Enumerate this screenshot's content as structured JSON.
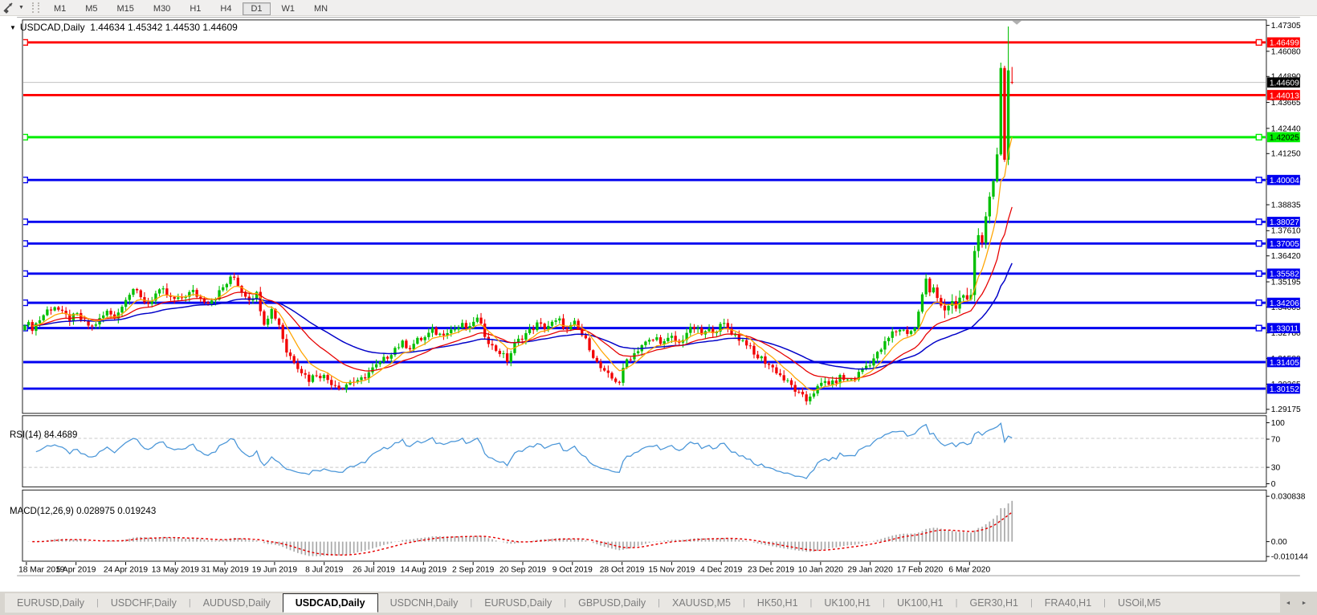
{
  "toolbar": {
    "caret": "▼",
    "timeframes": [
      "M1",
      "M5",
      "M15",
      "M30",
      "H1",
      "H4",
      "D1",
      "W1",
      "MN"
    ],
    "active_timeframe": "D1"
  },
  "chart": {
    "title": {
      "arrow": "▼",
      "symbol": "USDCAD,Daily",
      "ohlc": "1.44634 1.45342 1.44530 1.44609"
    },
    "rsi": {
      "name": "RSI(14)",
      "value": "84.4689"
    },
    "macd": {
      "name": "MACD(12,26,9)",
      "values": "0.028975 0.019243"
    }
  },
  "chart_data": {
    "type": "candlestick",
    "symbol": "USDCAD",
    "timeframe": "Daily",
    "last_candle_ohlc": {
      "open": 1.44634,
      "high": 1.45342,
      "low": 1.4453,
      "close": 1.44609
    },
    "current_price": "1.44609",
    "y_axis_ticks": [
      "1.47305",
      "1.46080",
      "1.44890",
      "1.43665",
      "1.42440",
      "1.41250",
      "1.40040",
      "1.38835",
      "1.37610",
      "1.36420",
      "1.35195",
      "1.34005",
      "1.32780",
      "1.31580",
      "1.30365",
      "1.29175"
    ],
    "x_axis_dates": [
      "18 Mar 2019",
      "5 Apr 2019",
      "24 Apr 2019",
      "13 May 2019",
      "31 May 2019",
      "19 Jun 2019",
      "8 Jul 2019",
      "26 Jul 2019",
      "14 Aug 2019",
      "2 Sep 2019",
      "20 Sep 2019",
      "9 Oct 2019",
      "28 Oct 2019",
      "15 Nov 2019",
      "4 Dec 2019",
      "23 Dec 2019",
      "10 Jan 2020",
      "29 Jan 2020",
      "17 Feb 2020",
      "6 Mar 2020"
    ],
    "hlines": [
      {
        "price": 1.46499,
        "label": "1.46499",
        "color": "red",
        "selected": true
      },
      {
        "price": 1.44013,
        "label": "1.44013",
        "color": "red",
        "selected": false
      },
      {
        "price": 1.42025,
        "label": "1.42025",
        "color": "green",
        "selected": true
      },
      {
        "price": 1.40004,
        "label": "1.40004",
        "color": "blue",
        "selected": true
      },
      {
        "price": 1.38027,
        "label": "1.38027",
        "color": "blue",
        "selected": true
      },
      {
        "price": 1.37005,
        "label": "1.37005",
        "color": "blue",
        "selected": true
      },
      {
        "price": 1.35582,
        "label": "1.35582",
        "color": "blue",
        "selected": true
      },
      {
        "price": 1.34206,
        "label": "1.34206",
        "color": "blue",
        "selected": true
      },
      {
        "price": 1.33011,
        "label": "1.33011",
        "color": "blue",
        "selected": true
      },
      {
        "price": 1.31405,
        "label": "1.31405",
        "color": "blue",
        "selected": false
      },
      {
        "price": 1.30152,
        "label": "1.30152",
        "color": "blue",
        "selected": false
      }
    ],
    "close_path_anchors": [
      [
        0,
        1.333
      ],
      [
        2,
        1.3302
      ],
      [
        4,
        1.3342
      ],
      [
        6,
        1.3385
      ],
      [
        8,
        1.3405
      ],
      [
        10,
        1.3368
      ],
      [
        12,
        1.3345
      ],
      [
        14,
        1.3362
      ],
      [
        16,
        1.3322
      ],
      [
        18,
        1.3308
      ],
      [
        20,
        1.334
      ],
      [
        22,
        1.3378
      ],
      [
        24,
        1.3358
      ],
      [
        26,
        1.3402
      ],
      [
        27,
        1.345
      ],
      [
        29,
        1.3488
      ],
      [
        31,
        1.344
      ],
      [
        33,
        1.3418
      ],
      [
        35,
        1.3462
      ],
      [
        37,
        1.3475
      ],
      [
        39,
        1.344
      ],
      [
        41,
        1.3432
      ],
      [
        43,
        1.3458
      ],
      [
        45,
        1.3472
      ],
      [
        47,
        1.344
      ],
      [
        49,
        1.3428
      ],
      [
        51,
        1.3448
      ],
      [
        53,
        1.3492
      ],
      [
        55,
        1.3532
      ],
      [
        56,
        1.354
      ],
      [
        58,
        1.3478
      ],
      [
        60,
        1.3442
      ],
      [
        62,
        1.3462
      ],
      [
        64,
        1.333
      ],
      [
        66,
        1.3388
      ],
      [
        68,
        1.332
      ],
      [
        70,
        1.319
      ],
      [
        72,
        1.3148
      ],
      [
        74,
        1.3098
      ],
      [
        76,
        1.3058
      ],
      [
        78,
        1.3086
      ],
      [
        80,
        1.3072
      ],
      [
        82,
        1.3045
      ],
      [
        84,
        1.3028
      ],
      [
        85,
        1.3018
      ],
      [
        87,
        1.3052
      ],
      [
        89,
        1.3042
      ],
      [
        91,
        1.3075
      ],
      [
        93,
        1.3108
      ],
      [
        95,
        1.3135
      ],
      [
        97,
        1.3168
      ],
      [
        99,
        1.3208
      ],
      [
        101,
        1.3228
      ],
      [
        103,
        1.3212
      ],
      [
        105,
        1.3242
      ],
      [
        107,
        1.3256
      ],
      [
        109,
        1.3288
      ],
      [
        111,
        1.327
      ],
      [
        113,
        1.3292
      ],
      [
        115,
        1.3296
      ],
      [
        117,
        1.3312
      ],
      [
        119,
        1.3295
      ],
      [
        120,
        1.3338
      ],
      [
        121,
        1.3342
      ],
      [
        123,
        1.3272
      ],
      [
        125,
        1.3212
      ],
      [
        127,
        1.3188
      ],
      [
        129,
        1.3148
      ],
      [
        131,
        1.3222
      ],
      [
        133,
        1.3262
      ],
      [
        135,
        1.3288
      ],
      [
        137,
        1.3318
      ],
      [
        139,
        1.3305
      ],
      [
        141,
        1.3322
      ],
      [
        143,
        1.3335
      ],
      [
        145,
        1.3288
      ],
      [
        147,
        1.3322
      ],
      [
        149,
        1.3268
      ],
      [
        151,
        1.3212
      ],
      [
        153,
        1.3135
      ],
      [
        155,
        1.3088
      ],
      [
        157,
        1.3062
      ],
      [
        159,
        1.3048
      ],
      [
        161,
        1.3152
      ],
      [
        163,
        1.3182
      ],
      [
        165,
        1.3222
      ],
      [
        167,
        1.3238
      ],
      [
        169,
        1.3252
      ],
      [
        171,
        1.3232
      ],
      [
        173,
        1.3255
      ],
      [
        175,
        1.3228
      ],
      [
        177,
        1.3282
      ],
      [
        179,
        1.3302
      ],
      [
        181,
        1.3272
      ],
      [
        183,
        1.3288
      ],
      [
        185,
        1.3298
      ],
      [
        187,
        1.3318
      ],
      [
        189,
        1.3282
      ],
      [
        191,
        1.3252
      ],
      [
        193,
        1.3232
      ],
      [
        195,
        1.3172
      ],
      [
        197,
        1.3158
      ],
      [
        199,
        1.3128
      ],
      [
        201,
        1.3098
      ],
      [
        203,
        1.3058
      ],
      [
        205,
        1.3028
      ],
      [
        207,
        1.2988
      ],
      [
        209,
        1.2958
      ],
      [
        210,
        1.2985
      ],
      [
        212,
        1.3018
      ],
      [
        214,
        1.3048
      ],
      [
        216,
        1.3038
      ],
      [
        218,
        1.3068
      ],
      [
        220,
        1.3055
      ],
      [
        222,
        1.3065
      ],
      [
        224,
        1.3108
      ],
      [
        226,
        1.3138
      ],
      [
        228,
        1.3178
      ],
      [
        230,
        1.3228
      ],
      [
        232,
        1.3278
      ],
      [
        234,
        1.3298
      ],
      [
        236,
        1.3282
      ],
      [
        238,
        1.3298
      ],
      [
        239,
        1.3382
      ],
      [
        240,
        1.3455
      ],
      [
        241,
        1.3528
      ],
      [
        242,
        1.347
      ],
      [
        243,
        1.3505
      ],
      [
        244,
        1.3448
      ],
      [
        245,
        1.3412
      ],
      [
        246,
        1.3382
      ],
      [
        247,
        1.3402
      ],
      [
        248,
        1.3428
      ],
      [
        249,
        1.3392
      ],
      [
        250,
        1.3442
      ],
      [
        251,
        1.3458
      ],
      [
        252,
        1.3435
      ],
      [
        253,
        1.3462
      ],
      [
        254,
        1.366
      ],
      [
        255,
        1.3735
      ],
      [
        256,
        1.37
      ],
      [
        257,
        1.383
      ],
      [
        258,
        1.3925
      ],
      [
        259,
        1.3996
      ],
      [
        260,
        1.412
      ],
      [
        261,
        1.4534
      ],
      [
        262,
        1.4095
      ],
      [
        263,
        1.4513
      ],
      [
        264,
        1.44609
      ]
    ],
    "spike_high_override": {
      "day": 263,
      "high": 1.4725
    },
    "indicators": {
      "ma_fast": {
        "type": "EMA",
        "period": 8,
        "color_key": "ma_fast"
      },
      "ma_mid": {
        "type": "EMA",
        "period": 21,
        "color_key": "ma_mid"
      },
      "ma_slow": {
        "type": "EMA",
        "period": 45,
        "color_key": "ma_slow"
      },
      "rsi": {
        "period": 14,
        "current": 84.4689,
        "levels": [
          "100",
          "70",
          "30",
          "0"
        ],
        "level_lines": [
          70,
          30
        ]
      },
      "macd": {
        "fast": 12,
        "slow": 26,
        "signal": 9,
        "current_macd": 0.028975,
        "current_signal": 0.019243,
        "axis_labels": [
          "0.030838",
          "0.00",
          "-0.010144"
        ]
      }
    }
  },
  "tabs": {
    "separator": "|",
    "scroll_left": "◄",
    "scroll_right": "►",
    "items": [
      {
        "label": "EURUSD,Daily",
        "active": false
      },
      {
        "label": "USDCHF,Daily",
        "active": false
      },
      {
        "label": "AUDUSD,Daily",
        "active": false
      },
      {
        "label": "USDCAD,Daily",
        "active": true
      },
      {
        "label": "USDCNH,Daily",
        "active": false
      },
      {
        "label": "EURUSD,Daily",
        "active": false
      },
      {
        "label": "GBPUSD,Daily",
        "active": false
      },
      {
        "label": "XAUUSD,M5",
        "active": false
      },
      {
        "label": "HK50,H1",
        "active": false
      },
      {
        "label": "UK100,H1",
        "active": false
      },
      {
        "label": "UK100,H1",
        "active": false
      },
      {
        "label": "GER30,H1",
        "active": false
      },
      {
        "label": "FRA40,H1",
        "active": false
      },
      {
        "label": "USOil,M5",
        "active": false
      }
    ]
  },
  "colors": {
    "candle_up": "#00bf00",
    "candle_down": "#f20000",
    "ma_fast": "#ffa500",
    "ma_mid": "#e60000",
    "ma_slow": "#0000c8",
    "hline_red": "#ff0000",
    "hline_green": "#00ee00",
    "hline_blue": "#0000f0",
    "current_price_line": "#b8b8b8",
    "current_price_badge": "#000000",
    "rsi_line": "#4a96d8",
    "level_dash": "#c8c8c8",
    "macd_bar": "#ababab",
    "macd_signal": "#e60000",
    "panel_border": "#1a1a1a",
    "shift_marker": "#b0b0b0"
  }
}
